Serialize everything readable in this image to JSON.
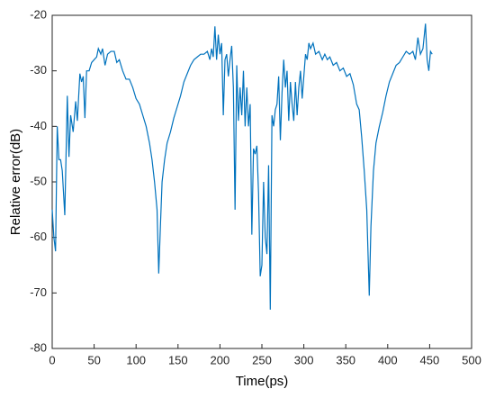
{
  "chart_data": {
    "type": "line",
    "xlabel": "Time(ps)",
    "ylabel": "Relative error(dB)",
    "x": [
      0,
      2,
      4,
      6,
      8,
      10,
      12,
      15,
      18,
      20,
      22,
      25,
      28,
      30,
      33,
      35,
      37,
      39,
      41,
      44,
      47,
      50,
      53,
      55,
      58,
      60,
      63,
      66,
      70,
      74,
      77,
      80,
      84,
      88,
      92,
      96,
      100,
      104,
      108,
      112,
      116,
      119,
      122,
      125,
      127,
      129,
      131,
      134,
      137,
      141,
      145,
      149,
      153,
      157,
      161,
      165,
      169,
      173,
      177,
      181,
      185,
      188,
      190,
      192,
      194,
      196,
      198,
      200,
      202,
      204,
      206,
      208,
      210,
      212,
      214,
      216,
      218,
      220,
      222,
      224,
      226,
      228,
      230,
      232,
      234,
      236,
      238,
      240,
      242,
      244,
      246,
      248,
      250,
      252,
      254,
      256,
      258,
      260,
      262,
      264,
      266,
      268,
      270,
      272,
      274,
      276,
      278,
      280,
      282,
      284,
      286,
      288,
      290,
      292,
      294,
      296,
      298,
      300,
      302,
      304,
      306,
      308,
      311,
      314,
      318,
      322,
      325,
      328,
      331,
      335,
      339,
      343,
      347,
      351,
      355,
      359,
      363,
      366,
      369,
      372,
      375,
      378,
      380,
      383,
      386,
      390,
      394,
      398,
      402,
      406,
      410,
      414,
      418,
      422,
      426,
      430,
      433,
      436,
      439,
      442,
      445,
      447,
      449,
      451,
      453
    ],
    "series": [
      {
        "name": "Relative error",
        "color": "#0072bd",
        "values": [
          -55,
          -60,
          -62.5,
          -40,
          -46,
          -46,
          -48,
          -56,
          -34.5,
          -45.5,
          -38,
          -41,
          -35.5,
          -39,
          -30.5,
          -32,
          -31,
          -38.5,
          -30,
          -30,
          -28.5,
          -28,
          -27.5,
          -26,
          -27,
          -26,
          -29,
          -27,
          -26.5,
          -26.5,
          -28.5,
          -28,
          -30,
          -31.5,
          -31.5,
          -33,
          -35,
          -36,
          -38,
          -40,
          -43,
          -46,
          -50,
          -55,
          -66.5,
          -58,
          -50,
          -46,
          -43,
          -41,
          -38.5,
          -36.5,
          -34.5,
          -32,
          -30.5,
          -29,
          -28,
          -27.5,
          -27,
          -27,
          -26.5,
          -28,
          -26,
          -27.5,
          -22,
          -28,
          -23.5,
          -27,
          -25,
          -38,
          -28,
          -27,
          -31,
          -28,
          -25.5,
          -33,
          -55,
          -29,
          -39,
          -33,
          -38,
          -30,
          -40,
          -33,
          -40,
          -36,
          -59.5,
          -44,
          -45,
          -43.5,
          -52,
          -67,
          -65,
          -50,
          -60,
          -63,
          -47,
          -73,
          -38,
          -40,
          -37,
          -36,
          -31,
          -42.5,
          -34,
          -28,
          -33,
          -30,
          -39,
          -32,
          -36,
          -39,
          -32,
          -38,
          -33,
          -30,
          -35,
          -31,
          -27,
          -28,
          -25,
          -26,
          -25,
          -27,
          -26.5,
          -28,
          -27,
          -28,
          -27.5,
          -29,
          -28.5,
          -30,
          -29.5,
          -31,
          -30.5,
          -32.5,
          -36,
          -37,
          -42,
          -48,
          -55,
          -70.5,
          -58,
          -48,
          -43,
          -40,
          -37.5,
          -34.5,
          -32,
          -30.5,
          -29,
          -28.5,
          -27.5,
          -26.5,
          -27,
          -26.5,
          -28,
          -24,
          -27,
          -26,
          -21.5,
          -28,
          -30,
          -26.5,
          -27
        ]
      }
    ],
    "xlim": [
      0,
      500
    ],
    "xticks": [
      0,
      50,
      100,
      150,
      200,
      250,
      300,
      350,
      400,
      450,
      500
    ],
    "ylim": [
      -80,
      -20
    ],
    "yticks": [
      -80,
      -70,
      -60,
      -50,
      -40,
      -30,
      -20
    ]
  }
}
